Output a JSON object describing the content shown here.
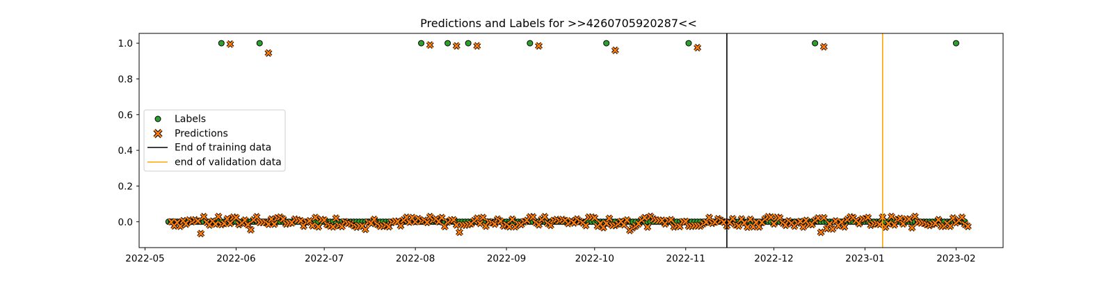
{
  "chart_data": {
    "type": "scatter",
    "title": "Predictions and Labels for >>4260705920287<<",
    "xlabel": "",
    "ylabel": "",
    "xlim": [
      "2022-04-29",
      "2023-02-17"
    ],
    "ylim": [
      -0.145,
      1.055
    ],
    "x_ticks": [
      "2022-05",
      "2022-06",
      "2022-07",
      "2022-08",
      "2022-09",
      "2022-10",
      "2022-11",
      "2022-12",
      "2023-01",
      "2023-02"
    ],
    "y_ticks": [
      "0.0",
      "0.2",
      "0.4",
      "0.6",
      "0.8",
      "1.0"
    ],
    "grid": false,
    "legend_placement": "center-left",
    "legend": [
      "Labels",
      "Predictions",
      "End of training data",
      "end of validation data"
    ],
    "vlines": [
      {
        "name": "End of training data",
        "x": "2022-11-15",
        "color": "#000000"
      },
      {
        "name": "end of validation data",
        "x": "2023-01-07",
        "color": "#ffa500"
      }
    ],
    "series": [
      {
        "name": "Labels",
        "marker": "circle",
        "color": "#2ca02c",
        "points": [
          [
            "2022-05-27",
            1.0
          ],
          [
            "2022-06-09",
            1.0
          ],
          [
            "2022-08-03",
            1.0
          ],
          [
            "2022-08-12",
            1.0
          ],
          [
            "2022-08-19",
            1.0
          ],
          [
            "2022-09-09",
            1.0
          ],
          [
            "2022-10-05",
            1.0
          ],
          [
            "2022-11-02",
            1.0
          ],
          [
            "2022-12-15",
            1.0
          ],
          [
            "2023-02-01",
            1.0
          ]
        ],
        "baseline": {
          "value": 0.0,
          "start": "2022-05-09",
          "end": "2023-02-04",
          "step_days": 1
        }
      },
      {
        "name": "Predictions",
        "marker": "x",
        "color": "#ff7f0e",
        "points": [
          [
            "2022-05-30",
            0.995
          ],
          [
            "2022-06-12",
            0.945
          ],
          [
            "2022-08-06",
            0.99
          ],
          [
            "2022-08-15",
            0.985
          ],
          [
            "2022-08-22",
            0.985
          ],
          [
            "2022-09-12",
            0.985
          ],
          [
            "2022-10-08",
            0.96
          ],
          [
            "2022-11-05",
            0.975
          ],
          [
            "2022-12-18",
            0.98
          ]
        ],
        "noisy_baseline": {
          "start": "2022-05-10",
          "end": "2023-02-05",
          "step_days": 1,
          "center": 0.0,
          "spread": 0.03
        }
      }
    ]
  }
}
